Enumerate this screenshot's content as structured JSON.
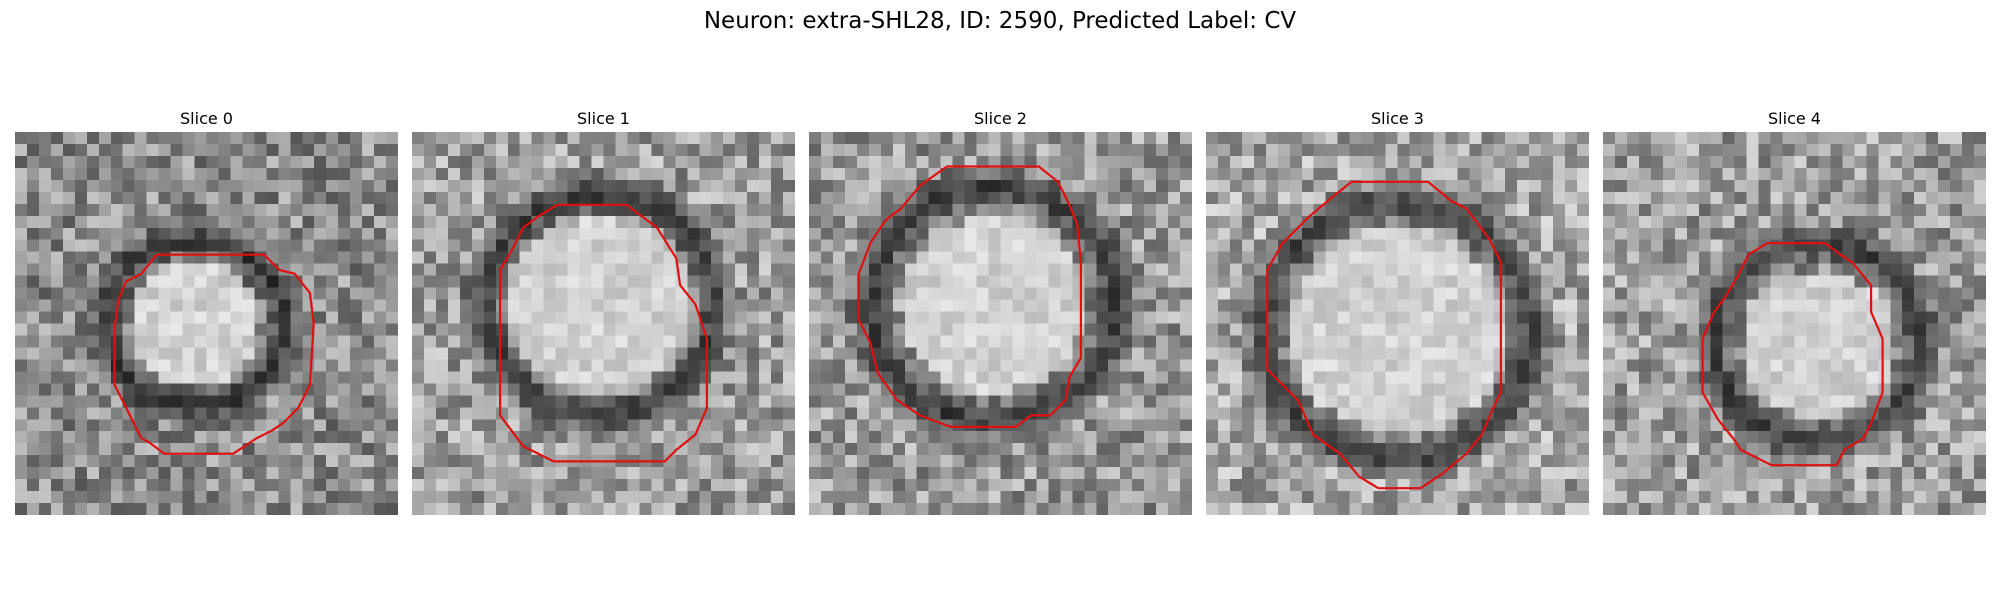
{
  "figure": {
    "title": "Neuron: extra-SHL28, ID: 2590, Predicted Label: CV"
  },
  "panels": [
    {
      "title": "Slice 0"
    },
    {
      "title": "Slice 1"
    },
    {
      "title": "Slice 2"
    },
    {
      "title": "Slice 3"
    },
    {
      "title": "Slice 4"
    }
  ],
  "colors": {
    "contour": "#e01010",
    "background": "#ffffff"
  }
}
